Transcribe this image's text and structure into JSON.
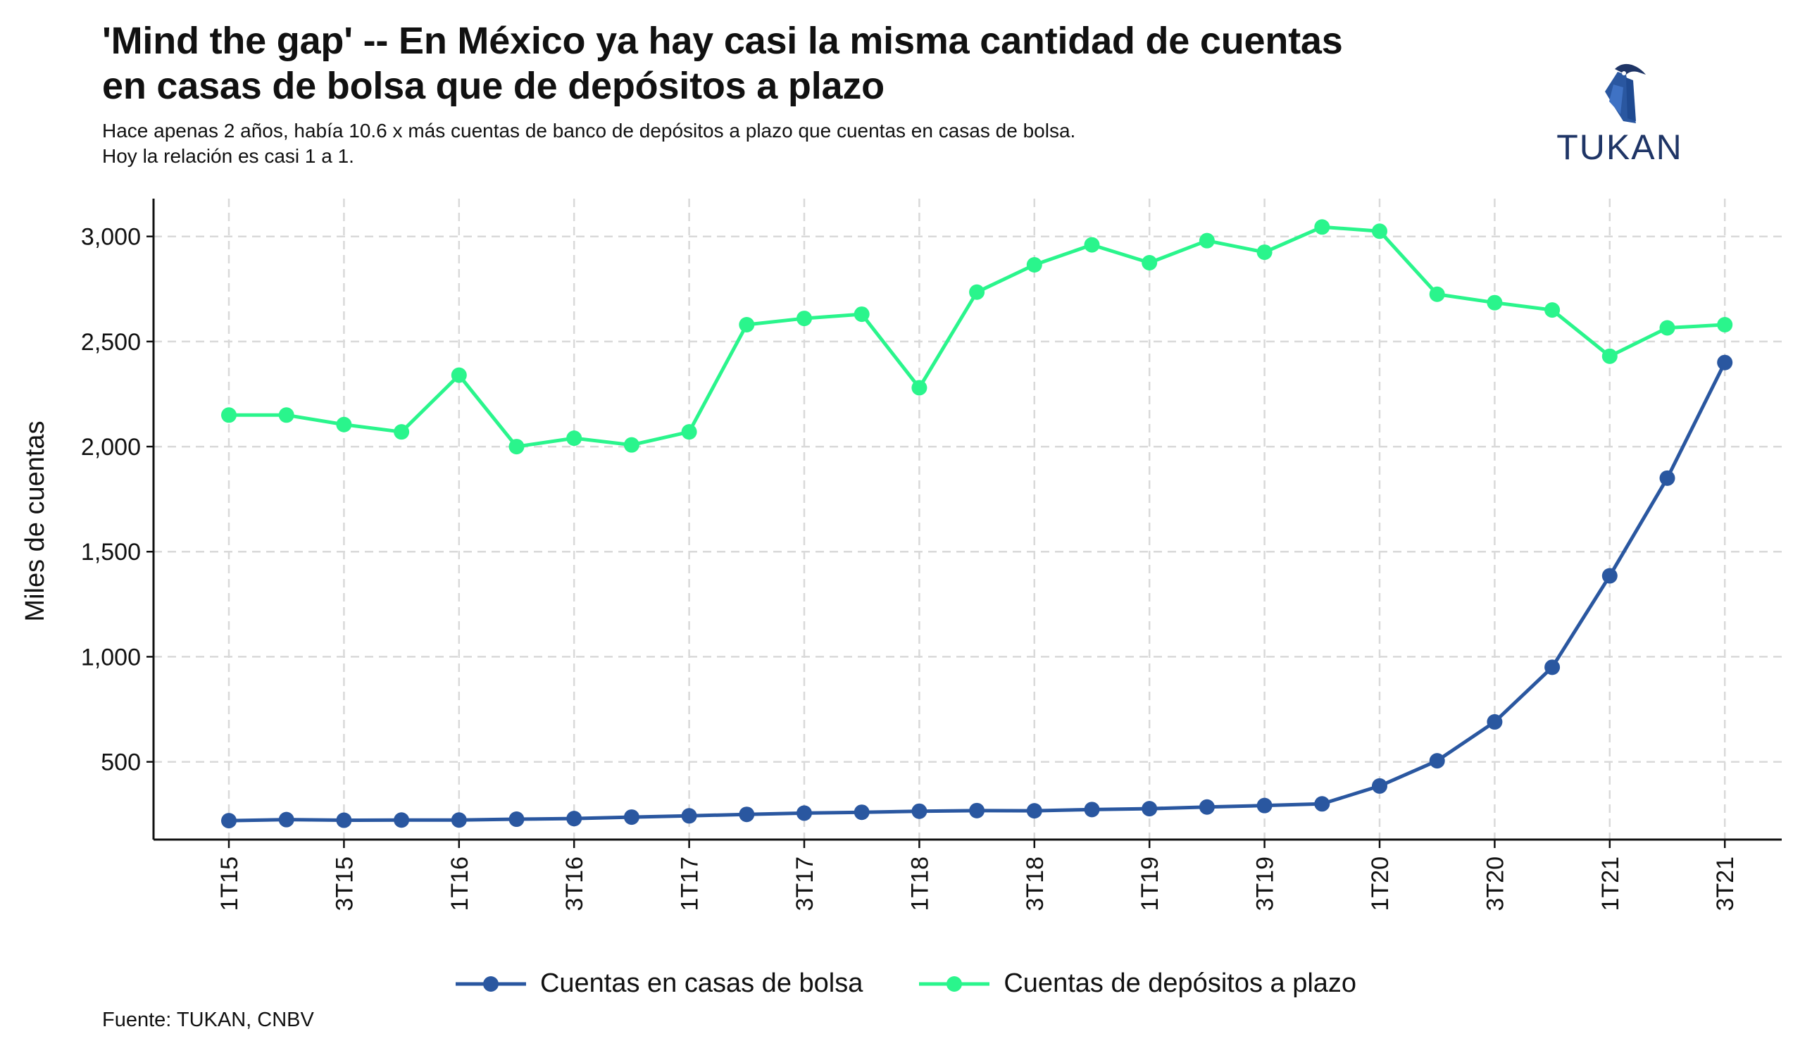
{
  "header": {
    "title_line1": "'Mind the gap' -- En México ya hay casi la misma cantidad de cuentas",
    "title_line2": "en casas de bolsa que de depósitos a plazo",
    "subtitle_line1": "Hace apenas 2 años, había 10.6 x más cuentas de banco de depósitos a plazo que cuentas en casas de bolsa.",
    "subtitle_line2": "Hoy la relación es casi 1 a 1."
  },
  "logo": {
    "text": "TUKAN",
    "icon": "toucan-logo-icon"
  },
  "footer": {
    "source": "Fuente: TUKAN, CNBV"
  },
  "colors": {
    "bolsa": "#2a57a0",
    "plazo": "#2af58c",
    "grid": "#d9d9d9",
    "axis": "#111111"
  },
  "chart_data": {
    "type": "line",
    "title": "'Mind the gap' -- En México ya hay casi la misma cantidad de cuentas en casas de bolsa que de depósitos a plazo",
    "xlabel": "",
    "ylabel": "Miles de cuentas",
    "ylim": [
      130,
      3180
    ],
    "yticks": [
      500,
      1000,
      1500,
      2000,
      2500,
      3000
    ],
    "ytick_labels": [
      "500",
      "1,000",
      "1,500",
      "2,000",
      "2,500",
      "3,000"
    ],
    "categories": [
      "1T15",
      "2T15",
      "3T15",
      "4T15",
      "1T16",
      "2T16",
      "3T16",
      "4T16",
      "1T17",
      "2T17",
      "3T17",
      "4T17",
      "1T18",
      "2T18",
      "3T18",
      "4T18",
      "1T19",
      "2T19",
      "3T19",
      "4T19",
      "1T20",
      "2T20",
      "3T20",
      "4T20",
      "1T21",
      "2T21",
      "3T21"
    ],
    "xtick_labels": [
      "1T15",
      "3T15",
      "1T16",
      "3T16",
      "1T17",
      "3T17",
      "1T18",
      "3T18",
      "1T19",
      "3T19",
      "1T20",
      "3T20",
      "1T21",
      "3T21"
    ],
    "grid": true,
    "legend_position": "bottom",
    "series": [
      {
        "name": "Cuentas en casas de bolsa",
        "values": [
          220,
          225,
          222,
          223,
          223,
          227,
          230,
          237,
          243,
          250,
          256,
          260,
          265,
          268,
          267,
          273,
          277,
          285,
          292,
          300,
          385,
          505,
          690,
          950,
          1385,
          1850,
          2400
        ]
      },
      {
        "name": "Cuentas de depósitos a plazo",
        "values": [
          2150,
          2150,
          2105,
          2070,
          2340,
          2000,
          2040,
          2008,
          2070,
          2580,
          2610,
          2630,
          2280,
          2735,
          2865,
          2960,
          2875,
          2980,
          2925,
          3045,
          3025,
          2725,
          2685,
          2650,
          2430,
          2565,
          2580
        ]
      }
    ]
  }
}
